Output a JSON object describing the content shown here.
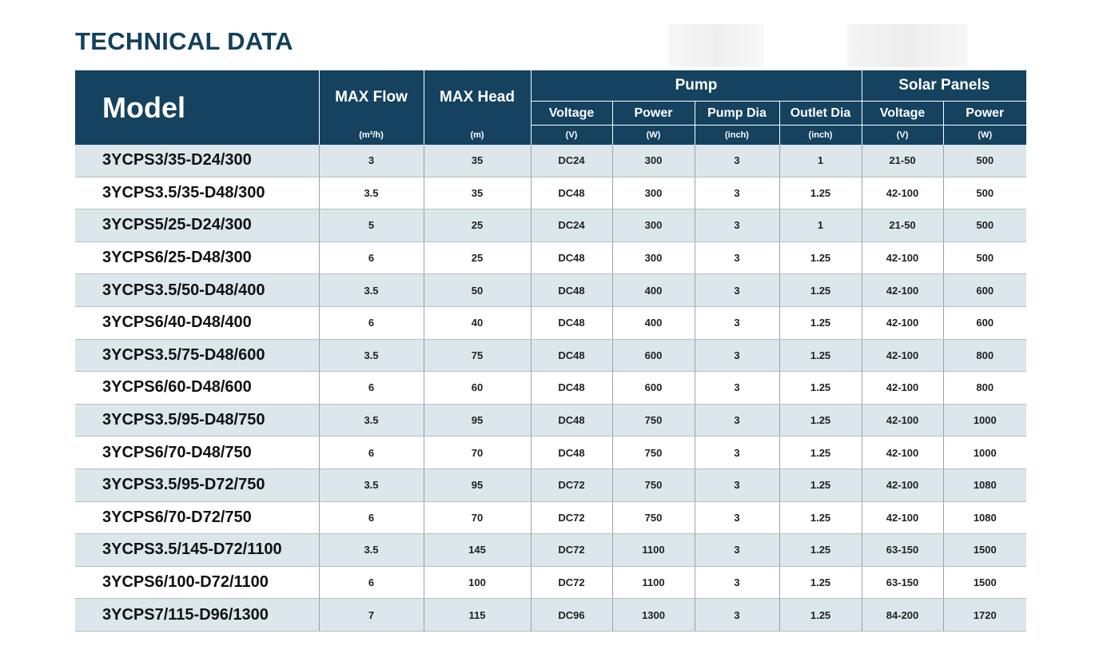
{
  "page": {
    "title": "TECHNICAL DATA"
  },
  "table": {
    "headers": {
      "model": "Model",
      "max_flow": "MAX Flow",
      "max_flow_unit": "(m³/h)",
      "max_head": "MAX Head",
      "max_head_unit": "(m)",
      "pump_group": "Pump",
      "solar_group": "Solar Panels",
      "pump_voltage": "Voltage",
      "pump_voltage_unit": "(V)",
      "pump_power": "Power",
      "pump_power_unit": "(W)",
      "pump_dia": "Pump Dia",
      "pump_dia_unit": "(inch)",
      "outlet_dia": "Outlet Dia",
      "outlet_dia_unit": "(inch)",
      "solar_voltage": "Voltage",
      "solar_voltage_unit": "(V)",
      "solar_power": "Power",
      "solar_power_unit": "(W)"
    },
    "rows": [
      [
        "3YCPS3/35-D24/300",
        "3",
        "35",
        "DC24",
        "300",
        "3",
        "1",
        "21-50",
        "500"
      ],
      [
        "3YCPS3.5/35-D48/300",
        "3.5",
        "35",
        "DC48",
        "300",
        "3",
        "1.25",
        "42-100",
        "500"
      ],
      [
        "3YCPS5/25-D24/300",
        "5",
        "25",
        "DC24",
        "300",
        "3",
        "1",
        "21-50",
        "500"
      ],
      [
        "3YCPS6/25-D48/300",
        "6",
        "25",
        "DC48",
        "300",
        "3",
        "1.25",
        "42-100",
        "500"
      ],
      [
        "3YCPS3.5/50-D48/400",
        "3.5",
        "50",
        "DC48",
        "400",
        "3",
        "1.25",
        "42-100",
        "600"
      ],
      [
        "3YCPS6/40-D48/400",
        "6",
        "40",
        "DC48",
        "400",
        "3",
        "1.25",
        "42-100",
        "600"
      ],
      [
        "3YCPS3.5/75-D48/600",
        "3.5",
        "75",
        "DC48",
        "600",
        "3",
        "1.25",
        "42-100",
        "800"
      ],
      [
        "3YCPS6/60-D48/600",
        "6",
        "60",
        "DC48",
        "600",
        "3",
        "1.25",
        "42-100",
        "800"
      ],
      [
        "3YCPS3.5/95-D48/750",
        "3.5",
        "95",
        "DC48",
        "750",
        "3",
        "1.25",
        "42-100",
        "1000"
      ],
      [
        "3YCPS6/70-D48/750",
        "6",
        "70",
        "DC48",
        "750",
        "3",
        "1.25",
        "42-100",
        "1000"
      ],
      [
        "3YCPS3.5/95-D72/750",
        "3.5",
        "95",
        "DC72",
        "750",
        "3",
        "1.25",
        "42-100",
        "1080"
      ],
      [
        "3YCPS6/70-D72/750",
        "6",
        "70",
        "DC72",
        "750",
        "3",
        "1.25",
        "42-100",
        "1080"
      ],
      [
        "3YCPS3.5/145-D72/1100",
        "3.5",
        "145",
        "DC72",
        "1100",
        "3",
        "1.25",
        "63-150",
        "1500"
      ],
      [
        "3YCPS6/100-D72/1100",
        "6",
        "100",
        "DC72",
        "1100",
        "3",
        "1.25",
        "63-150",
        "1500"
      ],
      [
        "3YCPS7/115-D96/1300",
        "7",
        "115",
        "DC96",
        "1300",
        "3",
        "1.25",
        "84-200",
        "1720"
      ]
    ]
  },
  "colors": {
    "header_bg": "#14425f",
    "title": "#14405d",
    "shaded_row": "#dbe7ea"
  }
}
